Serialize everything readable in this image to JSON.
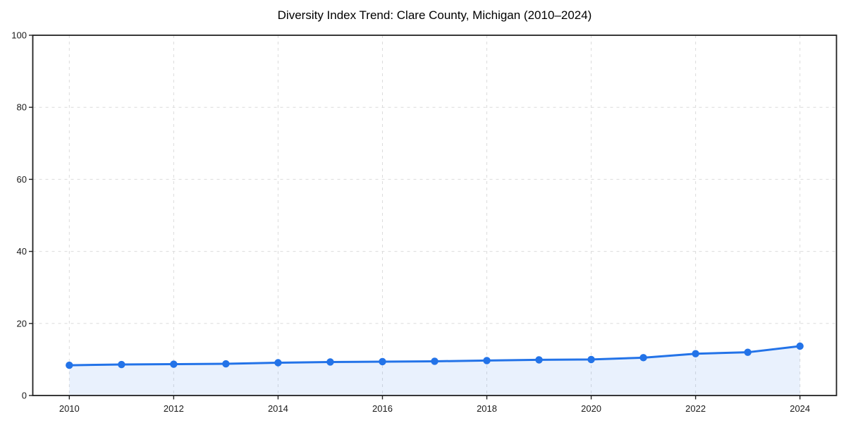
{
  "chart_data": {
    "type": "line",
    "title": "Diversity Index Trend: Clare County, Michigan (2010–2024)",
    "x": [
      2010,
      2011,
      2012,
      2013,
      2014,
      2015,
      2016,
      2017,
      2018,
      2019,
      2020,
      2021,
      2022,
      2023,
      2024
    ],
    "series": [
      {
        "name": "Diversity Index",
        "values": [
          8.4,
          8.6,
          8.7,
          8.8,
          9.1,
          9.3,
          9.4,
          9.5,
          9.7,
          9.9,
          10.0,
          10.5,
          11.6,
          12.0,
          13.7
        ],
        "line_color": "#2373e8",
        "marker": "circle",
        "marker_color": "#2373e8",
        "area_fill": true,
        "fill_color": "rgba(35,115,232,0.10)"
      }
    ],
    "xlabel": "",
    "ylabel": "",
    "xlim": [
      2009.3,
      2024.7
    ],
    "ylim": [
      0,
      100
    ],
    "xticks": [
      2010,
      2012,
      2014,
      2016,
      2018,
      2020,
      2022,
      2024
    ],
    "yticks": [
      0,
      20,
      40,
      60,
      80,
      100
    ],
    "grid": true,
    "grid_color": "#dcdcdc",
    "grid_style": "dashed",
    "legend": "none",
    "axis_color": "#222222",
    "tick_color": "#222222",
    "tick_label_color": "#1a1a1a",
    "background": "#ffffff"
  }
}
